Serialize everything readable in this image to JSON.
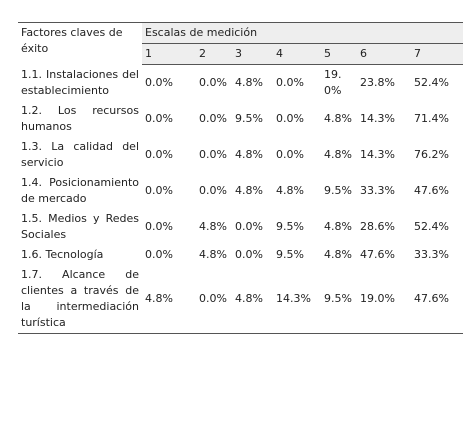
{
  "table": {
    "header": {
      "factor": "Factores claves de éxito",
      "scale": "Escalas de medición",
      "levels": [
        "1",
        "2",
        "3",
        "4",
        "5",
        "6",
        "7"
      ]
    },
    "rows": [
      {
        "factor": "1.1. Instalaciones del establecimiento",
        "values": [
          "0.0%",
          "0.0%",
          "4.8%",
          "0.0%",
          "19.0%",
          "23.8%",
          "52.4%"
        ]
      },
      {
        "factor": "1.2. Los recursos humanos",
        "values": [
          "0.0%",
          "0.0%",
          "9.5%",
          "0.0%",
          "4.8%",
          "14.3%",
          "71.4%"
        ]
      },
      {
        "factor": "1.3. La calidad del servicio",
        "values": [
          "0.0%",
          "0.0%",
          "4.8%",
          "0.0%",
          "4.8%",
          "14.3%",
          "76.2%"
        ]
      },
      {
        "factor": "1.4. Posicionamiento de mercado",
        "values": [
          "0.0%",
          "0.0%",
          "4.8%",
          "4.8%",
          "9.5%",
          "33.3%",
          "47.6%"
        ]
      },
      {
        "factor": "1.5. Medios y Redes Sociales",
        "values": [
          "0.0%",
          "4.8%",
          "0.0%",
          "9.5%",
          "4.8%",
          "28.6%",
          "52.4%"
        ]
      },
      {
        "factor": "1.6. Tecnología",
        "values": [
          "0.0%",
          "4.8%",
          "0.0%",
          "9.5%",
          "4.8%",
          "47.6%",
          "33.3%"
        ]
      },
      {
        "factor": "1.7. Alcance de clientes a través de la intermediación turística",
        "values": [
          "4.8%",
          "0.0%",
          "4.8%",
          "14.3%",
          "9.5%",
          "19.0%",
          "47.6%"
        ]
      }
    ]
  }
}
